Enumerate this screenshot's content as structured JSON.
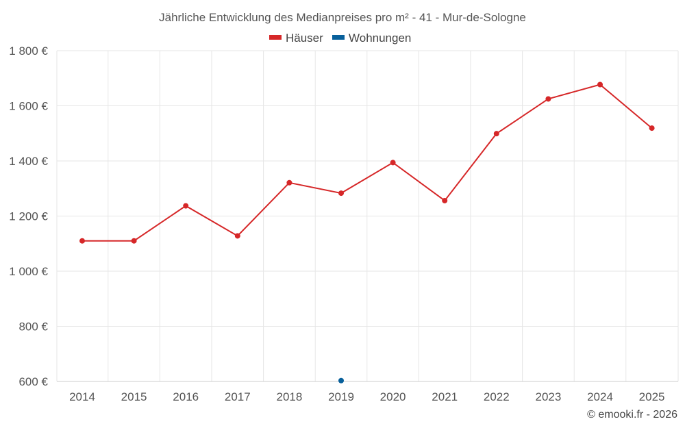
{
  "chart_data": {
    "type": "line",
    "title": "Jährliche Entwicklung des Medianpreises pro m² - 41 - Mur-de-Sologne",
    "categories": [
      "2014",
      "2015",
      "2016",
      "2017",
      "2018",
      "2019",
      "2020",
      "2021",
      "2022",
      "2023",
      "2024",
      "2025"
    ],
    "y_ticks": [
      "600 €",
      "800 €",
      "1 000 €",
      "1 200 €",
      "1 400 €",
      "1 600 €",
      "1 800 €"
    ],
    "ylim": [
      600,
      1800
    ],
    "grid": true,
    "legend_position": "top-center",
    "series": [
      {
        "name": "Häuser",
        "color": "#d62728",
        "values": [
          1110,
          1110,
          1237,
          1128,
          1321,
          1283,
          1394,
          1256,
          1499,
          1625,
          1677,
          1519
        ]
      },
      {
        "name": "Wohnungen",
        "color": "#08609b",
        "values": [
          null,
          null,
          null,
          null,
          null,
          603,
          null,
          null,
          null,
          null,
          null,
          null
        ]
      }
    ]
  },
  "credit": "© emooki.fr - 2026"
}
